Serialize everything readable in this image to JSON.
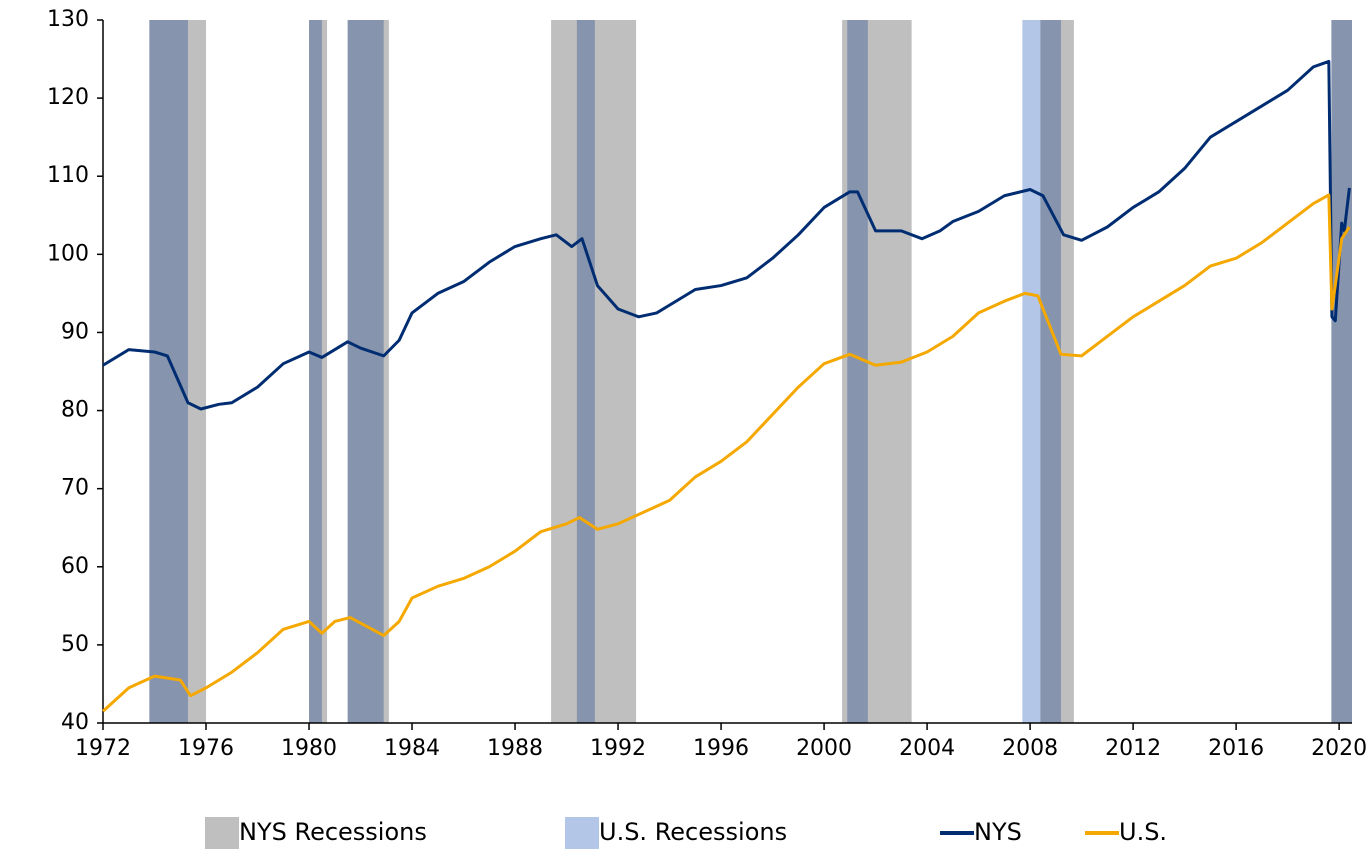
{
  "chart_data": {
    "type": "line",
    "xlim": [
      1972,
      2020.5
    ],
    "xticks": [
      1972,
      1976,
      1980,
      1984,
      1988,
      1992,
      1996,
      2000,
      2004,
      2008,
      2012,
      2016,
      2020
    ],
    "ylim": [
      40,
      130
    ],
    "yticks": [
      40,
      50,
      60,
      70,
      80,
      90,
      100,
      110,
      120,
      130
    ],
    "legend": "bottom",
    "recessions": [
      {
        "name": "NYS Recessions",
        "color": "#bfbfbf",
        "periods": [
          [
            1973.8,
            1976.0
          ],
          [
            1980.0,
            1980.7
          ],
          [
            1981.5,
            1983.1
          ],
          [
            1989.4,
            1992.7
          ],
          [
            2000.7,
            2003.4
          ],
          [
            2008.4,
            2009.7
          ],
          [
            2019.7,
            2020.5
          ]
        ]
      },
      {
        "name": "U.S. Recessions",
        "color": "#b4c6e7",
        "periods": [
          [
            1973.8,
            1975.3
          ],
          [
            1980.0,
            1980.5
          ],
          [
            1981.5,
            1982.9
          ],
          [
            1990.4,
            1991.1
          ],
          [
            2000.9,
            2001.7
          ],
          [
            2007.7,
            2009.2
          ],
          [
            2019.7,
            2020.5
          ]
        ]
      }
    ],
    "series": [
      {
        "name": "NYS",
        "color": "#002d72",
        "x": [
          1972,
          1973,
          1974,
          1974.5,
          1975.3,
          1975.8,
          1976.5,
          1977,
          1978,
          1979,
          1980,
          1980.5,
          1981.5,
          1982,
          1982.9,
          1983.5,
          1984,
          1985,
          1986,
          1987,
          1988,
          1989,
          1989.6,
          1990.2,
          1990.6,
          1991.2,
          1992,
          1992.8,
          1993.5,
          1994,
          1995,
          1996,
          1997,
          1998,
          1999,
          2000,
          2001,
          2001.3,
          2002,
          2003,
          2003.8,
          2004.5,
          2005,
          2006,
          2007,
          2008,
          2008.5,
          2009.3,
          2010,
          2011,
          2012,
          2013,
          2014,
          2015,
          2016,
          2017,
          2018,
          2019,
          2019.6,
          2019.72,
          2019.85,
          2020.1,
          2020.2,
          2020.4
        ],
        "values": [
          85.8,
          87.8,
          87.5,
          87,
          81,
          80.2,
          80.8,
          81,
          83,
          86,
          87.5,
          86.8,
          88.8,
          88,
          87,
          89,
          92.5,
          95,
          96.5,
          99,
          101,
          102,
          102.5,
          101,
          102,
          96,
          93,
          92,
          92.5,
          93.5,
          95.5,
          96,
          97,
          99.5,
          102.5,
          106,
          108,
          108,
          103,
          103,
          102,
          103,
          104.2,
          105.5,
          107.5,
          108.3,
          107.5,
          102.5,
          101.8,
          103.5,
          106,
          108,
          111,
          115,
          117,
          119,
          121,
          124,
          124.7,
          92,
          91.5,
          104,
          103,
          108.5
        ]
      },
      {
        "name": "U.S.",
        "color": "#f5a800",
        "x": [
          1972,
          1973,
          1974,
          1975,
          1975.4,
          1976,
          1977,
          1978,
          1979,
          1980,
          1980.5,
          1981,
          1981.6,
          1982.9,
          1983.5,
          1984,
          1985,
          1986,
          1987,
          1988,
          1989,
          1990,
          1990.5,
          1991.2,
          1992,
          1993,
          1994,
          1995,
          1996,
          1997,
          1998,
          1999,
          2000,
          2001,
          2002,
          2003,
          2004,
          2005,
          2006,
          2007,
          2007.8,
          2008.3,
          2009.2,
          2010,
          2011,
          2012,
          2013,
          2014,
          2015,
          2016,
          2017,
          2018,
          2019,
          2019.6,
          2019.72,
          2019.85,
          2020.1,
          2020.4
        ],
        "values": [
          41.5,
          44.5,
          46,
          45.5,
          43.5,
          44.5,
          46.5,
          49,
          52,
          53,
          51.5,
          53,
          53.5,
          51.2,
          53,
          56,
          57.5,
          58.5,
          60,
          62,
          64.5,
          65.5,
          66.3,
          64.8,
          65.5,
          67,
          68.5,
          71.5,
          73.5,
          76,
          79.5,
          83,
          86,
          87.2,
          85.8,
          86.2,
          87.5,
          89.5,
          92.5,
          94,
          95,
          94.7,
          87.2,
          87,
          89.5,
          92,
          94,
          96,
          98.5,
          99.5,
          101.5,
          104,
          106.5,
          107.6,
          93,
          96,
          102,
          103.5
        ]
      }
    ]
  }
}
